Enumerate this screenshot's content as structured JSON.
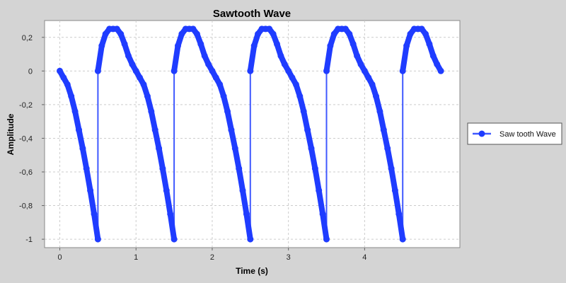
{
  "chart_data": {
    "type": "line",
    "title": "Sawtooth Wave",
    "xlabel": "Time (s)",
    "ylabel": "Amplitude",
    "xlim": [
      -0.2,
      5.25
    ],
    "ylim": [
      -1.05,
      0.3
    ],
    "x_ticks": [
      0,
      1,
      2,
      3,
      4
    ],
    "x_tick_labels": [
      "0",
      "1",
      "2",
      "3",
      "4"
    ],
    "y_ticks": [
      0.2,
      0,
      -0.2,
      -0.4,
      -0.6,
      -0.8,
      -1
    ],
    "y_tick_labels": [
      "0,2",
      "0",
      "-0,2",
      "-0,4",
      "-0,6",
      "-0,8",
      "-1"
    ],
    "grid": true,
    "legend_position": "right",
    "series": [
      {
        "name": "Saw tooth Wave",
        "color": "#1f3cff",
        "x": [
          0.0,
          0.05,
          0.1,
          0.15,
          0.2,
          0.25,
          0.3,
          0.35,
          0.4,
          0.45,
          0.5,
          0.5,
          0.55,
          0.6,
          0.65,
          0.7,
          0.75,
          0.8,
          0.85,
          0.9,
          0.95,
          1.0,
          1.05,
          1.1,
          1.15,
          1.2,
          1.25,
          1.3,
          1.35,
          1.4,
          1.45,
          1.5,
          1.5,
          1.55,
          1.6,
          1.65,
          1.7,
          1.75,
          1.8,
          1.85,
          1.9,
          1.95,
          2.0,
          2.05,
          2.1,
          2.15,
          2.2,
          2.25,
          2.3,
          2.35,
          2.4,
          2.45,
          2.5,
          2.5,
          2.55,
          2.6,
          2.65,
          2.7,
          2.75,
          2.8,
          2.85,
          2.9,
          2.95,
          3.0,
          3.05,
          3.1,
          3.15,
          3.2,
          3.25,
          3.3,
          3.35,
          3.4,
          3.45,
          3.5,
          3.5,
          3.55,
          3.6,
          3.65,
          3.7,
          3.75,
          3.8,
          3.85,
          3.9,
          3.95,
          4.0,
          4.05,
          4.1,
          4.15,
          4.2,
          4.25,
          4.3,
          4.35,
          4.4,
          4.45,
          4.5,
          4.5,
          4.55,
          4.6,
          4.65,
          4.7,
          4.75,
          4.8,
          4.85,
          4.9,
          4.95,
          5.0
        ],
        "y": [
          0.0,
          -0.04,
          -0.08,
          -0.15,
          -0.24,
          -0.35,
          -0.46,
          -0.58,
          -0.71,
          -0.85,
          -1.0,
          0.0,
          0.15,
          0.22,
          0.25,
          0.25,
          0.25,
          0.22,
          0.16,
          0.09,
          0.04,
          0.0,
          -0.04,
          -0.08,
          -0.15,
          -0.24,
          -0.35,
          -0.46,
          -0.58,
          -0.71,
          -0.85,
          -1.0,
          0.0,
          0.15,
          0.22,
          0.25,
          0.25,
          0.25,
          0.22,
          0.16,
          0.09,
          0.04,
          0.0,
          -0.04,
          -0.08,
          -0.15,
          -0.24,
          -0.35,
          -0.46,
          -0.58,
          -0.71,
          -0.85,
          -1.0,
          0.0,
          0.15,
          0.22,
          0.25,
          0.25,
          0.25,
          0.22,
          0.16,
          0.09,
          0.04,
          0.0,
          -0.04,
          -0.08,
          -0.15,
          -0.24,
          -0.35,
          -0.46,
          -0.58,
          -0.71,
          -0.85,
          -1.0,
          0.0,
          0.15,
          0.22,
          0.25,
          0.25,
          0.25,
          0.22,
          0.16,
          0.09,
          0.04,
          0.0,
          -0.04,
          -0.08,
          -0.15,
          -0.24,
          -0.35,
          -0.46,
          -0.58,
          -0.71,
          -0.85,
          -1.0,
          0.0,
          0.15,
          0.22,
          0.25,
          0.25,
          0.25,
          0.22,
          0.16,
          0.09,
          0.04,
          0.0
        ]
      }
    ]
  }
}
